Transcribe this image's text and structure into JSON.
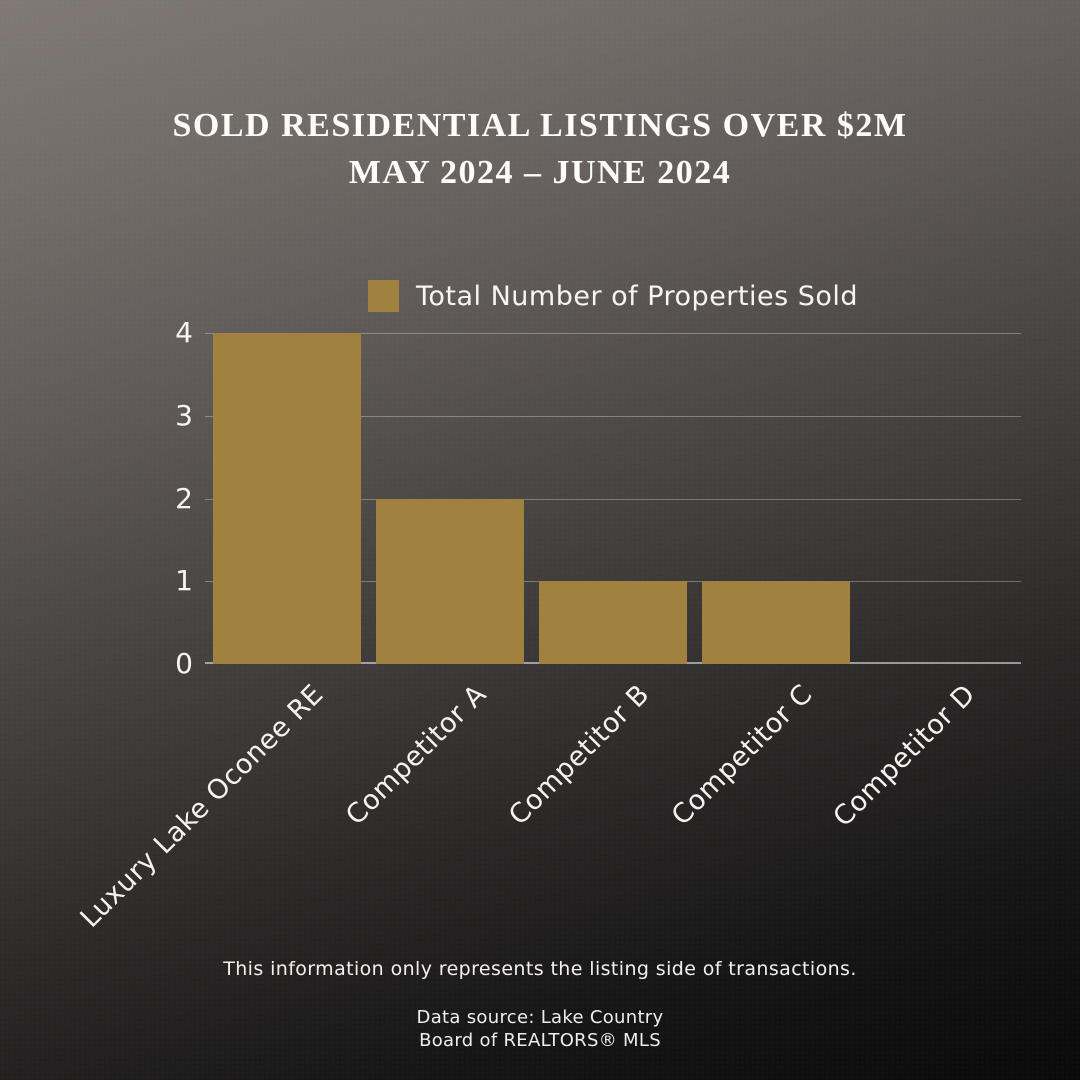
{
  "title": {
    "line1": "SOLD RESIDENTIAL LISTINGS OVER $2M",
    "line2": "MAY 2024 – JUNE 2024"
  },
  "legend": {
    "label": "Total Number of Properties Sold"
  },
  "chart_data": {
    "type": "bar",
    "categories": [
      "Luxury Lake Oconee RE",
      "Competitor A",
      "Competitor B",
      "Competitor C",
      "Competitor D"
    ],
    "values": [
      4,
      2,
      1,
      1,
      0
    ],
    "series_name": "Total Number of Properties Sold",
    "yticks": [
      0,
      1,
      2,
      3,
      4
    ],
    "ylim": [
      0,
      4
    ],
    "grid": true,
    "legend_position": "top",
    "bar_color": "#a18140",
    "label_rotation_deg": 45
  },
  "footer": {
    "note": "This information only represents the listing side of transactions.",
    "source_line1": "Data source: Lake Country",
    "source_line2": "Board of REALTORS® MLS"
  },
  "colors": {
    "accent_gold": "#a18140",
    "background_top": "#807974",
    "background_bottom": "#0a0a0a",
    "text": "#fdfcfb",
    "gridline": "rgba(255,255,255,0.30)"
  }
}
